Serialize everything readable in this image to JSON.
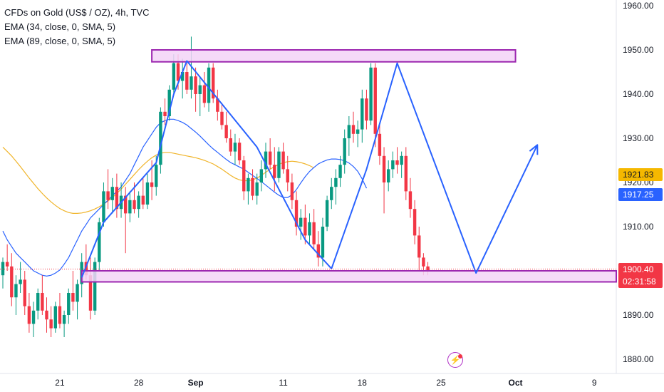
{
  "legend": {
    "title": "CFDs on Gold (US$ / OZ), 4h, TVC",
    "ema1": "EMA (34, close, 0, SMA, 5)",
    "ema2": "EMA (89, close, 0, SMA, 5)"
  },
  "price_labels": {
    "ema89": "1921.83",
    "ema34": "1917.25",
    "last_price": "1900.40",
    "countdown": "02:31:58"
  },
  "colors": {
    "up": "#089981",
    "down": "#f23645",
    "ema34": "#2962ff",
    "ema89": "#f0b429",
    "zone_fill": "#f3d4f7",
    "zone_border": "#9c27b0",
    "pattern_line": "#2962ff",
    "ema89_label": "#f5b800",
    "ema34_label": "#2962ff",
    "last_label": "#f23645"
  },
  "logo_icon": "lightning-icon",
  "chart_data": {
    "type": "candlestick",
    "symbol": "CFDs on Gold (US$ / OZ)",
    "timeframe": "4h",
    "ylim": [
      1878,
      1962
    ],
    "y_ticks": [
      1880,
      1890,
      1900,
      1910,
      1920,
      1930,
      1940,
      1950,
      1960
    ],
    "y_tick_labels": [
      "1880.00",
      "1890.00",
      "1900.00",
      "1910.00",
      "1920.00",
      "1930.00",
      "1940.00",
      "1950.00",
      "1960.00"
    ],
    "x_ticks": [
      {
        "label": "21",
        "bar": 13,
        "bold": false
      },
      {
        "label": "28",
        "bar": 31,
        "bold": false
      },
      {
        "label": "Sep",
        "bar": 44,
        "bold": true
      },
      {
        "label": "11",
        "bar": 64,
        "bold": false
      },
      {
        "label": "18",
        "bar": 82,
        "bold": false
      },
      {
        "label": "25",
        "bar": 100,
        "bold": false
      },
      {
        "label": "Oct",
        "bar": 117,
        "bold": true
      },
      {
        "label": "9",
        "bar": 135,
        "bold": false
      }
    ],
    "grid": false,
    "candles": [
      [
        1899,
        1903,
        1896,
        1902
      ],
      [
        1902,
        1906,
        1900,
        1901
      ],
      [
        1901,
        1904,
        1892,
        1894
      ],
      [
        1894,
        1899,
        1890,
        1897
      ],
      [
        1897,
        1902,
        1895,
        1898
      ],
      [
        1898,
        1900,
        1890,
        1892
      ],
      [
        1892,
        1895,
        1886,
        1888
      ],
      [
        1888,
        1893,
        1885,
        1891
      ],
      [
        1891,
        1896,
        1889,
        1895
      ],
      [
        1895,
        1899,
        1890,
        1891
      ],
      [
        1891,
        1894,
        1886,
        1889
      ],
      [
        1889,
        1892,
        1885,
        1887
      ],
      [
        1887,
        1893,
        1886,
        1892
      ],
      [
        1892,
        1895,
        1887,
        1888
      ],
      [
        1888,
        1891,
        1885,
        1890
      ],
      [
        1890,
        1896,
        1888,
        1895
      ],
      [
        1895,
        1900,
        1891,
        1893
      ],
      [
        1893,
        1898,
        1889,
        1897
      ],
      [
        1897,
        1904,
        1894,
        1902
      ],
      [
        1902,
        1906,
        1898,
        1899
      ],
      [
        1899,
        1903,
        1889,
        1891
      ],
      [
        1891,
        1903,
        1890,
        1902
      ],
      [
        1902,
        1912,
        1900,
        1911
      ],
      [
        1911,
        1920,
        1910,
        1918
      ],
      [
        1918,
        1923,
        1914,
        1916
      ],
      [
        1916,
        1921,
        1913,
        1919
      ],
      [
        1919,
        1922,
        1912,
        1914
      ],
      [
        1914,
        1920,
        1912,
        1917
      ],
      [
        1917,
        1919,
        1904,
        1913
      ],
      [
        1913,
        1918,
        1911,
        1916
      ],
      [
        1916,
        1920,
        1913,
        1914
      ],
      [
        1914,
        1918,
        1912,
        1917
      ],
      [
        1917,
        1921,
        1914,
        1915
      ],
      [
        1915,
        1922,
        1914,
        1920
      ],
      [
        1920,
        1925,
        1916,
        1919
      ],
      [
        1919,
        1926,
        1917,
        1924
      ],
      [
        1924,
        1937,
        1922,
        1936
      ],
      [
        1936,
        1939,
        1933,
        1935
      ],
      [
        1935,
        1942,
        1934,
        1941
      ],
      [
        1941,
        1949,
        1940,
        1947
      ],
      [
        1947,
        1949,
        1941,
        1943
      ],
      [
        1943,
        1948,
        1939,
        1945
      ],
      [
        1945,
        1947,
        1940,
        1941
      ],
      [
        1941,
        1953,
        1939,
        1944
      ],
      [
        1944,
        1946,
        1936,
        1940
      ],
      [
        1940,
        1944,
        1935,
        1942
      ],
      [
        1942,
        1945,
        1937,
        1938
      ],
      [
        1938,
        1947,
        1936,
        1946
      ],
      [
        1946,
        1947,
        1938,
        1939
      ],
      [
        1939,
        1941,
        1934,
        1936
      ],
      [
        1936,
        1938,
        1932,
        1933
      ],
      [
        1933,
        1936,
        1929,
        1930
      ],
      [
        1930,
        1932,
        1926,
        1927
      ],
      [
        1927,
        1931,
        1924,
        1929
      ],
      [
        1929,
        1930,
        1924,
        1925
      ],
      [
        1925,
        1926,
        1916,
        1918
      ],
      [
        1918,
        1922,
        1915,
        1921
      ],
      [
        1921,
        1923,
        1916,
        1917
      ],
      [
        1917,
        1922,
        1915,
        1920
      ],
      [
        1920,
        1925,
        1918,
        1923
      ],
      [
        1923,
        1929,
        1921,
        1927
      ],
      [
        1927,
        1930,
        1923,
        1924
      ],
      [
        1924,
        1928,
        1918,
        1921
      ],
      [
        1921,
        1928,
        1920,
        1927
      ],
      [
        1927,
        1929,
        1922,
        1923
      ],
      [
        1923,
        1926,
        1918,
        1920
      ],
      [
        1920,
        1922,
        1914,
        1916
      ],
      [
        1916,
        1918,
        1908,
        1910
      ],
      [
        1910,
        1914,
        1907,
        1912
      ],
      [
        1912,
        1915,
        1906,
        1908
      ],
      [
        1908,
        1913,
        1906,
        1911
      ],
      [
        1911,
        1914,
        1905,
        1906
      ],
      [
        1906,
        1909,
        1901,
        1903
      ],
      [
        1903,
        1912,
        1901,
        1910
      ],
      [
        1910,
        1917,
        1909,
        1916
      ],
      [
        1916,
        1921,
        1914,
        1919
      ],
      [
        1919,
        1923,
        1915,
        1921
      ],
      [
        1921,
        1926,
        1919,
        1924
      ],
      [
        1924,
        1932,
        1922,
        1930
      ],
      [
        1930,
        1935,
        1926,
        1933
      ],
      [
        1933,
        1936,
        1929,
        1931
      ],
      [
        1931,
        1934,
        1928,
        1932
      ],
      [
        1932,
        1941,
        1929,
        1939
      ],
      [
        1939,
        1941,
        1932,
        1934
      ],
      [
        1934,
        1947,
        1933,
        1946
      ],
      [
        1946,
        1947,
        1928,
        1931
      ],
      [
        1931,
        1933,
        1924,
        1926
      ],
      [
        1926,
        1928,
        1913,
        1920
      ],
      [
        1920,
        1925,
        1918,
        1923
      ],
      [
        1923,
        1927,
        1921,
        1925
      ],
      [
        1925,
        1928,
        1922,
        1924
      ],
      [
        1924,
        1927,
        1921,
        1926
      ],
      [
        1926,
        1928,
        1916,
        1918
      ],
      [
        1918,
        1921,
        1912,
        1914
      ],
      [
        1914,
        1916,
        1906,
        1908
      ],
      [
        1908,
        1910,
        1900,
        1903
      ],
      [
        1903,
        1904,
        1899,
        1901
      ],
      [
        1901,
        1902,
        1899,
        1900
      ]
    ],
    "ema34": [
      1909,
      1907,
      1905.5,
      1904,
      1903,
      1902,
      1901,
      1900,
      1899.5,
      1899,
      1898.8,
      1899,
      1899.5,
      1900.2,
      1901.5,
      1903,
      1905,
      1907,
      1909,
      1910.5,
      1912,
      1913,
      1914,
      1915,
      1916,
      1917,
      1918,
      1919,
      1920.5,
      1922,
      1924,
      1926,
      1928,
      1929.5,
      1931,
      1932.5,
      1933.5,
      1934,
      1934.3,
      1934.3,
      1934,
      1933.6,
      1933,
      1932.2,
      1931.4,
      1930.5,
      1929.5,
      1928.5,
      1927.6,
      1926.8,
      1926,
      1925.2,
      1924.5,
      1924,
      1923.5,
      1923,
      1922.3,
      1921.6,
      1920.9,
      1920.2,
      1919.4,
      1918.6,
      1917.8,
      1917.1,
      1916.6,
      1916.6,
      1917.2,
      1918.4,
      1919.9,
      1921.3,
      1922.5,
      1923.4,
      1924.2,
      1924.7,
      1925.1,
      1925.3,
      1925.3,
      1925.2,
      1924.9,
      1924.4,
      1923.6,
      1922.5,
      1920.8,
      1918.7
    ],
    "ema34_start_bar": 0,
    "ema89": [
      1928,
      1927,
      1926,
      1924.8,
      1923.6,
      1922.3,
      1921,
      1919.8,
      1918.6,
      1917.5,
      1916.5,
      1915.6,
      1914.8,
      1914.1,
      1913.6,
      1913.2,
      1913,
      1913,
      1913.1,
      1913.3,
      1913.6,
      1914,
      1914.5,
      1915.1,
      1915.8,
      1916.6,
      1917.5,
      1918.5,
      1919.6,
      1920.7,
      1921.8,
      1922.9,
      1923.9,
      1924.8,
      1925.6,
      1926.2,
      1926.6,
      1926.8,
      1926.8,
      1926.6,
      1926.4,
      1926.2,
      1926,
      1925.8,
      1925.6,
      1925.3,
      1925,
      1924.6,
      1924.2,
      1923.6,
      1923,
      1922.3,
      1921.6,
      1921,
      1920.6,
      1920.4,
      1920.4,
      1920.6,
      1921,
      1921.6,
      1922.3,
      1923,
      1923.6,
      1924.1,
      1924.5,
      1924.7,
      1924.8,
      1924.7,
      1924.5,
      1924.2,
      1923.8,
      1923.3
    ],
    "ema89_start_bar": 0,
    "zones": [
      {
        "name": "resistance",
        "top": 1950,
        "bottom": 1947.3,
        "from_bar": 34,
        "to_bar": 117
      },
      {
        "name": "support",
        "top": 1900,
        "bottom": 1897.5,
        "from_bar": 18,
        "to_bar": 140
      }
    ],
    "pattern": [
      [
        18,
        1898.5
      ],
      [
        23,
        1911
      ],
      [
        35,
        1924.5
      ],
      [
        39,
        1940
      ],
      [
        42,
        1947.5
      ],
      [
        58,
        1928
      ],
      [
        69,
        1907
      ],
      [
        75,
        1900.5
      ],
      [
        83,
        1923
      ],
      [
        90,
        1947
      ],
      [
        108,
        1899.5
      ],
      [
        122,
        1928.5
      ]
    ],
    "pattern_arrow": true,
    "last_price": 1900.4,
    "ema89_last": 1921.83,
    "ema34_last": 1917.25
  }
}
